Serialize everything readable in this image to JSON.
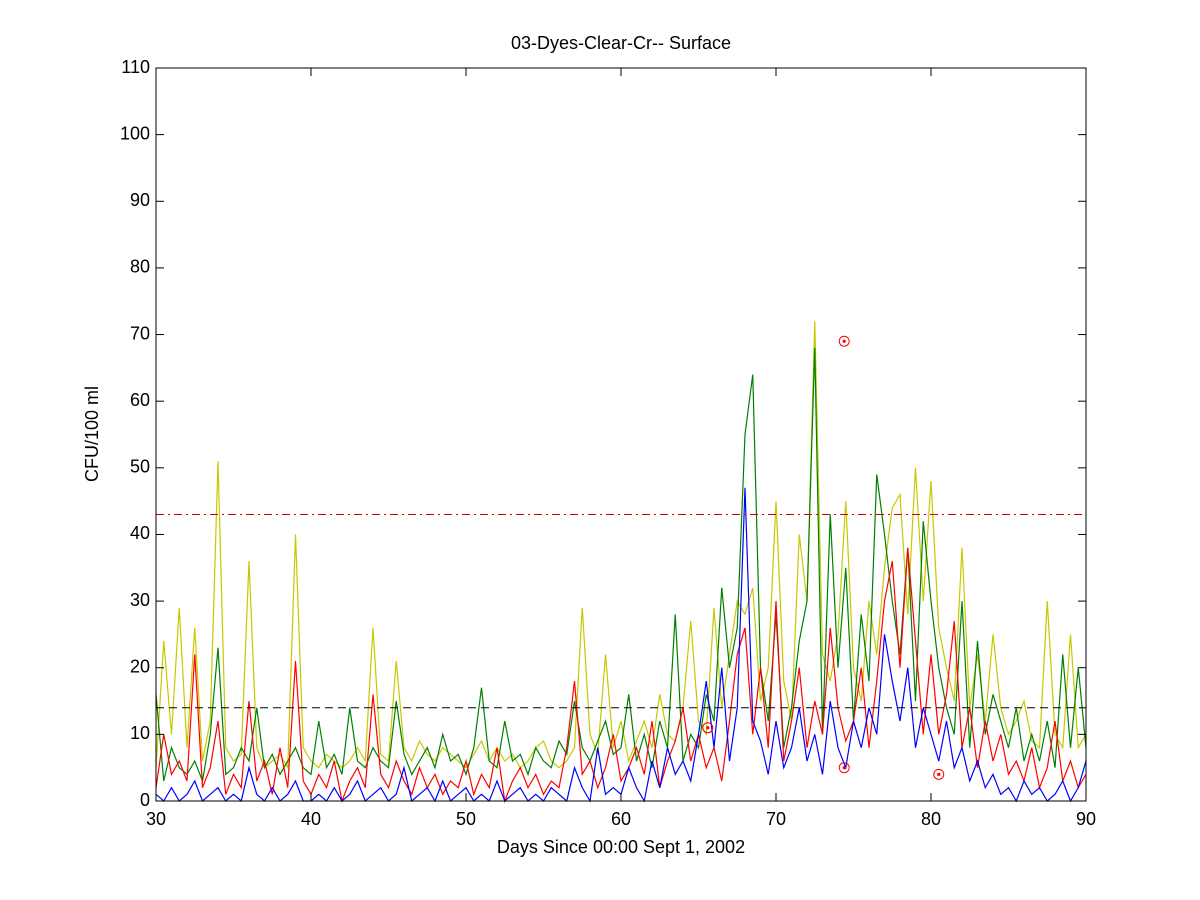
{
  "chart_data": {
    "type": "line",
    "title": "03-Dyes-Clear-Cr-- Surface",
    "x_label": "Days Since 00:00 Sept 1, 2002",
    "y_label": "CFU/100 ml",
    "xlim": [
      30,
      90
    ],
    "xticks": [
      30,
      40,
      50,
      60,
      70,
      80,
      90
    ],
    "ylim": [
      0,
      110
    ],
    "yticks": [
      0,
      10,
      20,
      30,
      40,
      50,
      60,
      70,
      80,
      90,
      100,
      110
    ],
    "x": [
      30,
      30.5,
      31,
      31.5,
      32,
      32.5,
      33,
      33.5,
      34,
      34.5,
      35,
      35.5,
      36,
      36.5,
      37,
      37.5,
      38,
      38.5,
      39,
      39.5,
      40,
      40.5,
      41,
      41.5,
      42,
      42.5,
      43,
      43.5,
      44,
      44.5,
      45,
      45.5,
      46,
      46.5,
      47,
      47.5,
      48,
      48.5,
      49,
      49.5,
      50,
      50.5,
      51,
      51.5,
      52,
      52.5,
      53,
      53.5,
      54,
      54.5,
      55,
      55.5,
      56,
      56.5,
      57,
      57.5,
      58,
      58.5,
      59,
      59.5,
      60,
      60.5,
      61,
      61.5,
      62,
      62.5,
      63,
      63.5,
      64,
      64.5,
      65,
      65.5,
      66,
      66.5,
      67,
      67.5,
      68,
      68.5,
      69,
      69.5,
      70,
      70.5,
      71,
      71.5,
      72,
      72.5,
      73,
      73.5,
      74,
      74.5,
      75,
      75.5,
      76,
      76.5,
      77,
      77.5,
      78,
      78.5,
      79,
      79.5,
      80,
      80.5,
      81,
      81.5,
      82,
      82.5,
      83,
      83.5,
      84,
      84.5,
      85,
      85.5,
      86,
      86.5,
      87,
      87.5,
      88,
      88.5,
      89,
      89.5,
      90
    ],
    "series": [
      {
        "color": "#c8c800",
        "values": [
          5,
          24,
          10,
          29,
          8,
          26,
          6,
          12,
          51,
          8,
          6,
          7,
          36,
          8,
          5,
          6,
          7,
          5,
          40,
          8,
          6,
          5,
          7,
          6,
          5,
          6,
          8,
          6,
          26,
          7,
          6,
          21,
          8,
          6,
          9,
          7,
          6,
          8,
          7,
          6,
          5,
          7,
          9,
          6,
          8,
          6,
          7,
          5,
          6,
          8,
          9,
          6,
          5,
          6,
          8,
          29,
          10,
          7,
          22,
          8,
          12,
          6,
          9,
          12,
          8,
          16,
          10,
          9,
          14,
          27,
          12,
          10,
          29,
          14,
          22,
          30,
          28,
          32,
          15,
          20,
          45,
          18,
          12,
          40,
          30,
          72,
          22,
          18,
          25,
          45,
          20,
          15,
          30,
          22,
          35,
          44,
          46,
          28,
          50,
          30,
          48,
          26,
          20,
          15,
          38,
          14,
          22,
          12,
          25,
          14,
          10,
          12,
          15,
          9,
          8,
          30,
          10,
          8,
          25,
          8,
          10
        ]
      },
      {
        "color": "#008000",
        "values": [
          16,
          3,
          8,
          5,
          4,
          6,
          3,
          10,
          23,
          4,
          5,
          8,
          6,
          14,
          5,
          7,
          4,
          6,
          8,
          5,
          4,
          12,
          5,
          7,
          4,
          14,
          6,
          5,
          8,
          6,
          5,
          15,
          7,
          4,
          6,
          8,
          5,
          10,
          6,
          7,
          4,
          8,
          17,
          6,
          5,
          12,
          6,
          7,
          4,
          8,
          6,
          5,
          9,
          7,
          15,
          8,
          6,
          9,
          12,
          7,
          8,
          16,
          6,
          10,
          5,
          12,
          8,
          28,
          6,
          10,
          8,
          16,
          12,
          32,
          20,
          26,
          55,
          64,
          20,
          12,
          28,
          8,
          14,
          24,
          30,
          68,
          10,
          43,
          20,
          35,
          12,
          28,
          18,
          49,
          40,
          30,
          22,
          38,
          15,
          42,
          30,
          20,
          14,
          10,
          30,
          8,
          24,
          10,
          16,
          12,
          8,
          14,
          6,
          10,
          6,
          12,
          5,
          22,
          8,
          20,
          8
        ]
      },
      {
        "color": "#ff0000",
        "values": [
          2,
          10,
          4,
          6,
          3,
          22,
          2,
          5,
          12,
          1,
          4,
          2,
          15,
          3,
          6,
          1,
          8,
          2,
          21,
          3,
          1,
          4,
          2,
          6,
          0,
          3,
          5,
          2,
          16,
          4,
          2,
          6,
          3,
          1,
          5,
          2,
          4,
          1,
          3,
          2,
          6,
          1,
          4,
          2,
          8,
          0,
          3,
          5,
          2,
          4,
          1,
          3,
          2,
          8,
          18,
          4,
          6,
          2,
          5,
          10,
          3,
          5,
          8,
          4,
          12,
          2,
          6,
          9,
          14,
          6,
          10,
          5,
          8,
          3,
          12,
          22,
          26,
          10,
          20,
          8,
          30,
          6,
          12,
          20,
          8,
          15,
          10,
          26,
          14,
          9,
          12,
          20,
          8,
          18,
          30,
          36,
          20,
          38,
          24,
          10,
          22,
          10,
          16,
          27,
          8,
          14,
          5,
          12,
          6,
          10,
          4,
          6,
          3,
          8,
          2,
          5,
          12,
          3,
          6,
          2,
          4
        ]
      },
      {
        "color": "#0000ff",
        "values": [
          1,
          0,
          2,
          0,
          1,
          3,
          0,
          1,
          2,
          0,
          1,
          0,
          5,
          1,
          0,
          2,
          0,
          1,
          3,
          0,
          0,
          1,
          0,
          2,
          0,
          1,
          3,
          0,
          1,
          2,
          0,
          1,
          5,
          0,
          1,
          2,
          0,
          3,
          0,
          1,
          2,
          0,
          1,
          0,
          3,
          0,
          1,
          2,
          0,
          1,
          0,
          2,
          1,
          0,
          5,
          2,
          0,
          8,
          1,
          2,
          1,
          5,
          2,
          0,
          6,
          2,
          8,
          4,
          6,
          3,
          10,
          18,
          8,
          20,
          6,
          14,
          47,
          12,
          9,
          4,
          12,
          5,
          8,
          14,
          6,
          10,
          4,
          15,
          8,
          5,
          12,
          8,
          14,
          10,
          25,
          18,
          12,
          20,
          8,
          14,
          10,
          6,
          12,
          5,
          8,
          3,
          6,
          2,
          4,
          1,
          2,
          0,
          3,
          1,
          2,
          0,
          1,
          3,
          0,
          2,
          6
        ]
      }
    ],
    "reference_lines": [
      {
        "value": 43,
        "color": "#cc0000",
        "style": "dashdot"
      },
      {
        "value": 14,
        "color": "#000000",
        "style": "dashed"
      }
    ],
    "observations": {
      "color": "#ff0000",
      "x": [
        65.6,
        74.4,
        74.4,
        80.5
      ],
      "values": [
        11,
        69,
        5,
        4
      ]
    }
  }
}
